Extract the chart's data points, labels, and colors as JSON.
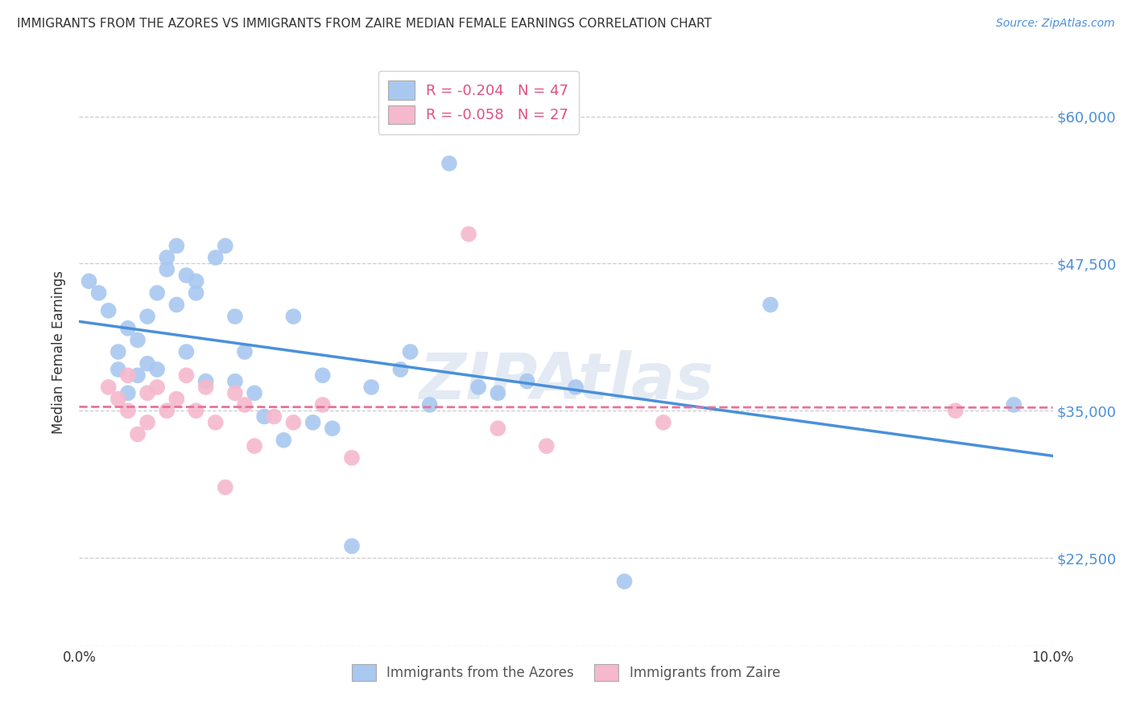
{
  "title": "IMMIGRANTS FROM THE AZORES VS IMMIGRANTS FROM ZAIRE MEDIAN FEMALE EARNINGS CORRELATION CHART",
  "source": "Source: ZipAtlas.com",
  "ylabel": "Median Female Earnings",
  "xlim": [
    0.0,
    0.1
  ],
  "ylim": [
    15000,
    65000
  ],
  "yticks": [
    22500,
    35000,
    47500,
    60000
  ],
  "ytick_labels_right": [
    "$22,500",
    "$35,000",
    "$47,500",
    "$60,000"
  ],
  "xticks": [
    0.0,
    0.02,
    0.04,
    0.06,
    0.08,
    0.1
  ],
  "xtick_labels": [
    "0.0%",
    "",
    "",
    "",
    "",
    "10.0%"
  ],
  "watermark": "ZIPAtlas",
  "legend1_label": "R = -0.204   N = 47",
  "legend2_label": "R = -0.058   N = 27",
  "series1_color": "#a8c8f0",
  "series2_color": "#f5b8cc",
  "line1_color": "#4a90d9",
  "line2_color": "#e8729a",
  "azores_x": [
    0.001,
    0.002,
    0.003,
    0.004,
    0.004,
    0.005,
    0.005,
    0.006,
    0.006,
    0.007,
    0.007,
    0.008,
    0.008,
    0.009,
    0.009,
    0.01,
    0.01,
    0.011,
    0.011,
    0.012,
    0.012,
    0.013,
    0.014,
    0.015,
    0.016,
    0.016,
    0.017,
    0.018,
    0.019,
    0.021,
    0.022,
    0.024,
    0.025,
    0.026,
    0.028,
    0.03,
    0.033,
    0.034,
    0.036,
    0.038,
    0.041,
    0.043,
    0.046,
    0.051,
    0.056,
    0.071,
    0.096
  ],
  "azores_y": [
    46000,
    45000,
    43500,
    40000,
    38500,
    42000,
    36500,
    41000,
    38000,
    43000,
    39000,
    38500,
    45000,
    47000,
    48000,
    49000,
    44000,
    40000,
    46500,
    46000,
    45000,
    37500,
    48000,
    49000,
    43000,
    37500,
    40000,
    36500,
    34500,
    32500,
    43000,
    34000,
    38000,
    33500,
    23500,
    37000,
    38500,
    40000,
    35500,
    56000,
    37000,
    36500,
    37500,
    37000,
    20500,
    44000,
    35500
  ],
  "zaire_x": [
    0.003,
    0.004,
    0.005,
    0.005,
    0.006,
    0.007,
    0.007,
    0.008,
    0.009,
    0.01,
    0.011,
    0.012,
    0.013,
    0.014,
    0.015,
    0.016,
    0.017,
    0.018,
    0.02,
    0.022,
    0.025,
    0.028,
    0.04,
    0.043,
    0.048,
    0.06,
    0.09
  ],
  "zaire_y": [
    37000,
    36000,
    35000,
    38000,
    33000,
    36500,
    34000,
    37000,
    35000,
    36000,
    38000,
    35000,
    37000,
    34000,
    28500,
    36500,
    35500,
    32000,
    34500,
    34000,
    35500,
    31000,
    50000,
    33500,
    32000,
    34000,
    35000
  ]
}
